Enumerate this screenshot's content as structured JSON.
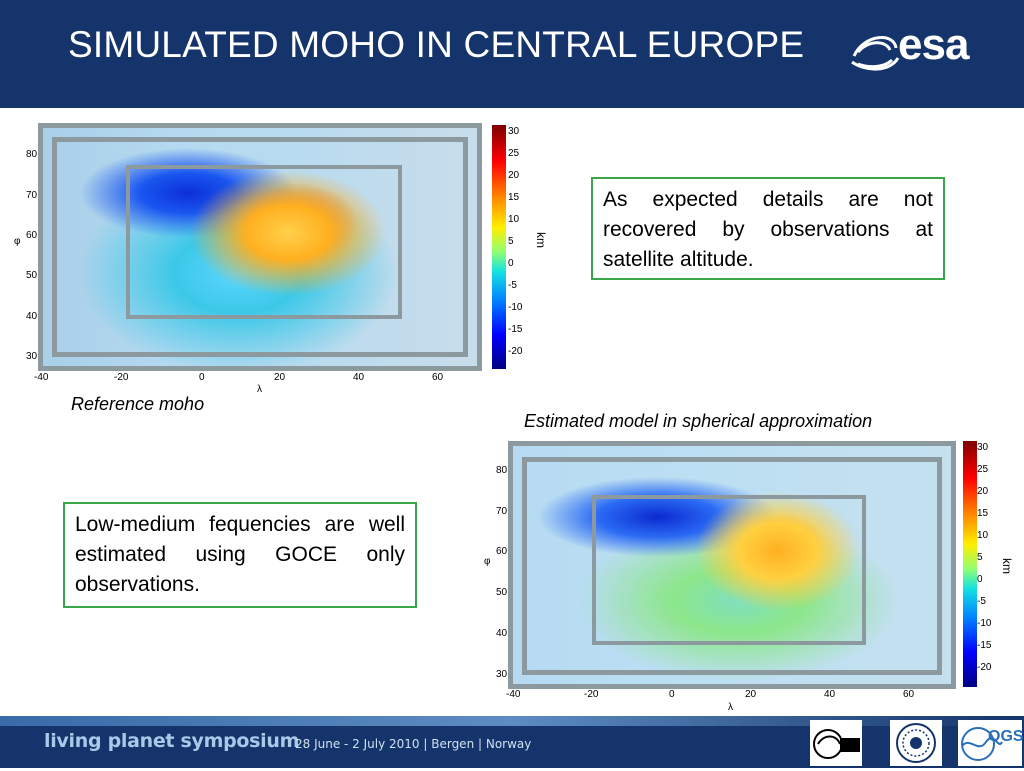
{
  "header": {
    "title": "SIMULATED MOHO IN CENTRAL EUROPE",
    "logo_text": "esa"
  },
  "footer": {
    "symposium": "living planet symposium",
    "dates": "28 June - 2 July 2010 | Bergen | Norway",
    "logo2_text": "OGS"
  },
  "note_top": "As expected details are not recovered by observations at satellite altitude.",
  "note_bottom": "Low-medium fequencies are well estimated using GOCE only observations.",
  "caption_left": "Reference moho",
  "caption_right": "Estimated model in spherical approximation",
  "maps": {
    "y_ticks": [
      "80",
      "70",
      "60",
      "50",
      "40",
      "30"
    ],
    "x_ticks": [
      "-40",
      "-20",
      "0",
      "20",
      "40",
      "60"
    ],
    "x_label": "λ",
    "y_label": "φ",
    "colorbar_ticks": [
      "30",
      "25",
      "20",
      "15",
      "10",
      "5",
      "0",
      "-5",
      "-10",
      "-15",
      "-20"
    ],
    "colorbar_unit": "km"
  }
}
